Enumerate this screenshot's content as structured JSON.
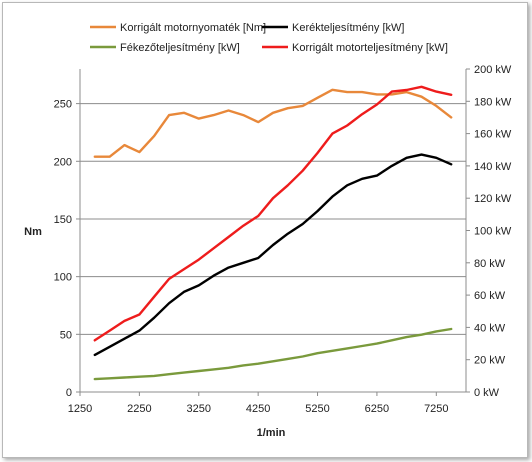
{
  "chart_data": {
    "type": "line",
    "title": "",
    "xlabel": "1/min",
    "ylabel": "Nm",
    "y2label": "",
    "xlim": [
      1250,
      7750
    ],
    "ylim": [
      0,
      280
    ],
    "y2lim": [
      0,
      200
    ],
    "x_ticks": [
      1250,
      2250,
      3250,
      4250,
      5250,
      6250,
      7250
    ],
    "y_ticks": [
      0,
      50,
      100,
      150,
      200,
      250
    ],
    "y2_ticks": [
      "0 kW",
      "20 kW",
      "40 kW",
      "60 kW",
      "80 kW",
      "100 kW",
      "120 kW",
      "140 kW",
      "160 kW",
      "180 kW",
      "200 kW"
    ],
    "y2_tick_values": [
      0,
      20,
      40,
      60,
      80,
      100,
      120,
      140,
      160,
      180,
      200
    ],
    "grid": true,
    "legend_position": "top",
    "series": [
      {
        "name": "Korrigált motornyomaték  [Nm]",
        "axis": "left",
        "color": "#e8883a",
        "x": [
          1500,
          1750,
          2000,
          2250,
          2500,
          2750,
          3000,
          3250,
          3500,
          3750,
          4000,
          4250,
          4500,
          4750,
          5000,
          5250,
          5500,
          5750,
          6000,
          6250,
          6500,
          6750,
          7000,
          7250,
          7500
        ],
        "values": [
          204,
          204,
          214,
          208,
          222,
          240,
          242,
          237,
          240,
          244,
          240,
          234,
          242,
          246,
          248,
          255,
          262,
          260,
          260,
          258,
          258,
          260,
          256,
          248,
          238
        ]
      },
      {
        "name": "Kerékteljesítmény [kW]",
        "axis": "right",
        "color": "#000000",
        "x": [
          1500,
          1750,
          2000,
          2250,
          2500,
          2750,
          3000,
          3250,
          3500,
          3750,
          4000,
          4250,
          4500,
          4750,
          5000,
          5250,
          5500,
          5750,
          6000,
          6250,
          6500,
          6750,
          7000,
          7250,
          7500
        ],
        "values": [
          23,
          28,
          33,
          38,
          46,
          55,
          62,
          66,
          72,
          77,
          80,
          83,
          91,
          98,
          104,
          112,
          121,
          128,
          132,
          134,
          140,
          145,
          147,
          145,
          141
        ]
      },
      {
        "name": "Fékezőteljesítmény [kW]",
        "axis": "right",
        "color": "#7a9a3c",
        "x": [
          1500,
          1750,
          2000,
          2250,
          2500,
          2750,
          3000,
          3250,
          3500,
          3750,
          4000,
          4250,
          4500,
          4750,
          5000,
          5250,
          5500,
          5750,
          6000,
          6250,
          6500,
          6750,
          7000,
          7250,
          7500
        ],
        "values": [
          8,
          8.5,
          9,
          9.5,
          10,
          11,
          12,
          13,
          14,
          15,
          16.5,
          17.5,
          19,
          20.5,
          22,
          24,
          25.5,
          27,
          28.5,
          30,
          32,
          34,
          35.5,
          37.5,
          39
        ]
      },
      {
        "name": "Korrigált motorteljesítmény [kW]",
        "axis": "right",
        "color": "#ee1c1c",
        "x": [
          1500,
          1750,
          2000,
          2250,
          2500,
          2750,
          3000,
          3250,
          3500,
          3750,
          4000,
          4250,
          4500,
          4750,
          5000,
          5250,
          5500,
          5750,
          6000,
          6250,
          6500,
          6750,
          7000,
          7250,
          7500
        ],
        "values": [
          32,
          38,
          44,
          48,
          59,
          70,
          76,
          82,
          89,
          96,
          103,
          109,
          120,
          128,
          137,
          148,
          160,
          165,
          172,
          178,
          186,
          187,
          189,
          186,
          184
        ]
      }
    ]
  }
}
